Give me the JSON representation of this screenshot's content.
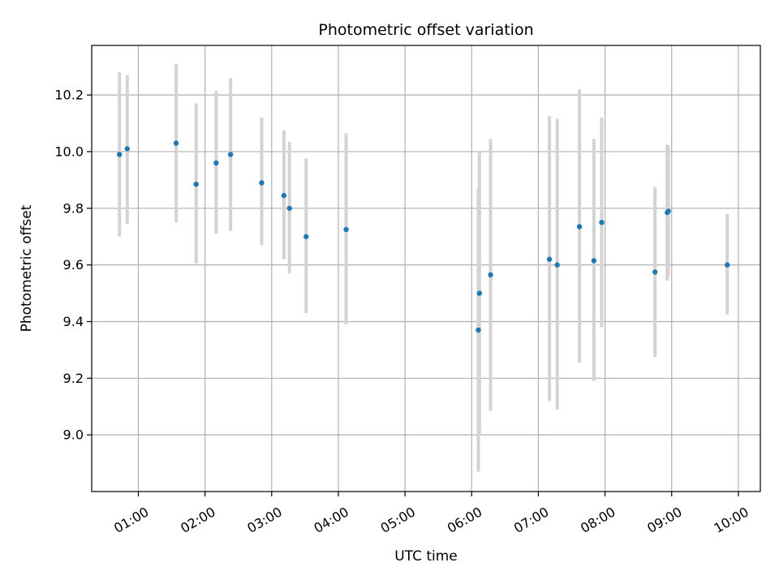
{
  "chart_data": {
    "type": "scatter",
    "title": "Photometric offset variation",
    "xlabel": "UTC time",
    "ylabel": "Photometric offset",
    "x_unit": "hours UTC",
    "xlim": [
      0.3,
      10.33
    ],
    "ylim": [
      8.8,
      10.375
    ],
    "xticks": [
      1,
      2,
      3,
      4,
      5,
      6,
      7,
      8,
      9,
      10
    ],
    "xtick_labels": [
      "01:00",
      "02:00",
      "03:00",
      "04:00",
      "05:00",
      "06:00",
      "07:00",
      "08:00",
      "09:00",
      "10:00"
    ],
    "yticks": [
      9.0,
      9.2,
      9.4,
      9.6,
      9.8,
      10.0,
      10.2
    ],
    "ytick_labels": [
      "9.0",
      "9.2",
      "9.4",
      "9.6",
      "9.8",
      "10.0",
      "10.2"
    ],
    "grid": true,
    "marker_color": "#1f77b4",
    "errorbar_color": "#d3d3d3",
    "points": [
      {
        "time": "00:43",
        "value": 9.99,
        "low": 9.7,
        "high": 10.28
      },
      {
        "time": "00:50",
        "value": 10.01,
        "low": 9.745,
        "high": 10.27
      },
      {
        "time": "01:34",
        "value": 10.03,
        "low": 9.75,
        "high": 10.31
      },
      {
        "time": "01:52",
        "value": 9.885,
        "low": 9.605,
        "high": 10.17
      },
      {
        "time": "02:10",
        "value": 9.96,
        "low": 9.71,
        "high": 10.215
      },
      {
        "time": "02:23",
        "value": 9.99,
        "low": 9.72,
        "high": 10.26
      },
      {
        "time": "02:51",
        "value": 9.89,
        "low": 9.67,
        "high": 10.12
      },
      {
        "time": "03:11",
        "value": 9.845,
        "low": 9.62,
        "high": 10.075
      },
      {
        "time": "03:16",
        "value": 9.8,
        "low": 9.57,
        "high": 10.035
      },
      {
        "time": "03:31",
        "value": 9.7,
        "low": 9.43,
        "high": 9.975
      },
      {
        "time": "04:07",
        "value": 9.725,
        "low": 9.39,
        "high": 10.065
      },
      {
        "time": "06:06",
        "value": 9.37,
        "low": 8.87,
        "high": 9.87
      },
      {
        "time": "06:07",
        "value": 9.5,
        "low": 9.005,
        "high": 10.0
      },
      {
        "time": "06:17",
        "value": 9.565,
        "low": 9.085,
        "high": 10.045
      },
      {
        "time": "07:10",
        "value": 9.62,
        "low": 9.12,
        "high": 10.125
      },
      {
        "time": "07:17",
        "value": 9.6,
        "low": 9.09,
        "high": 10.115
      },
      {
        "time": "07:37",
        "value": 9.735,
        "low": 9.255,
        "high": 10.22
      },
      {
        "time": "07:50",
        "value": 9.615,
        "low": 9.19,
        "high": 10.045
      },
      {
        "time": "07:57",
        "value": 9.75,
        "low": 9.38,
        "high": 10.12
      },
      {
        "time": "08:45",
        "value": 9.575,
        "low": 9.275,
        "high": 9.875
      },
      {
        "time": "08:56",
        "value": 9.785,
        "low": 9.545,
        "high": 10.025
      },
      {
        "time": "08:57",
        "value": 9.79,
        "low": 9.56,
        "high": 10.02
      },
      {
        "time": "09:50",
        "value": 9.6,
        "low": 9.425,
        "high": 9.78
      }
    ]
  }
}
